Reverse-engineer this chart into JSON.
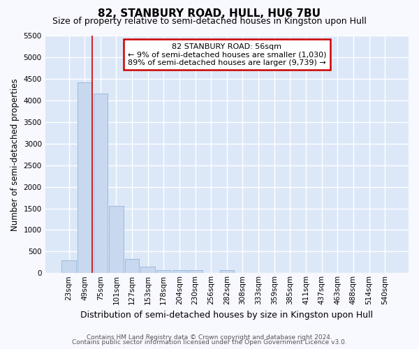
{
  "title": "82, STANBURY ROAD, HULL, HU6 7BU",
  "subtitle": "Size of property relative to semi-detached houses in Kingston upon Hull",
  "xlabel": "Distribution of semi-detached houses by size in Kingston upon Hull",
  "ylabel": "Number of semi-detached properties",
  "footer1": "Contains HM Land Registry data © Crown copyright and database right 2024.",
  "footer2": "Contains public sector information licensed under the Open Government Licence v3.0.",
  "categories": [
    "23sqm",
    "49sqm",
    "75sqm",
    "101sqm",
    "127sqm",
    "153sqm",
    "178sqm",
    "204sqm",
    "230sqm",
    "256sqm",
    "282sqm",
    "308sqm",
    "333sqm",
    "359sqm",
    "385sqm",
    "411sqm",
    "437sqm",
    "463sqm",
    "488sqm",
    "514sqm",
    "540sqm"
  ],
  "values": [
    295,
    4430,
    4160,
    1560,
    330,
    145,
    75,
    65,
    65,
    10,
    75,
    0,
    0,
    0,
    0,
    0,
    0,
    0,
    0,
    0,
    0
  ],
  "bar_color": "#c8d8ee",
  "bar_edge_color": "#90b4d8",
  "property_line_x": 1.5,
  "property_sqm": 56,
  "pct_smaller": 9,
  "n_smaller": 1030,
  "pct_larger": 89,
  "n_larger": 9739,
  "annotation_box_edgecolor": "#cc0000",
  "vline_color": "#cc0000",
  "ylim": [
    0,
    5500
  ],
  "yticks": [
    0,
    500,
    1000,
    1500,
    2000,
    2500,
    3000,
    3500,
    4000,
    4500,
    5000,
    5500
  ],
  "fig_bg_color": "#f8f8ff",
  "plot_bg_color": "#dce8f8",
  "grid_color": "#ffffff",
  "title_fontsize": 11,
  "subtitle_fontsize": 9,
  "xlabel_fontsize": 9,
  "ylabel_fontsize": 8.5,
  "tick_fontsize": 7.5,
  "footer_fontsize": 6.5,
  "ann_fontsize": 8
}
